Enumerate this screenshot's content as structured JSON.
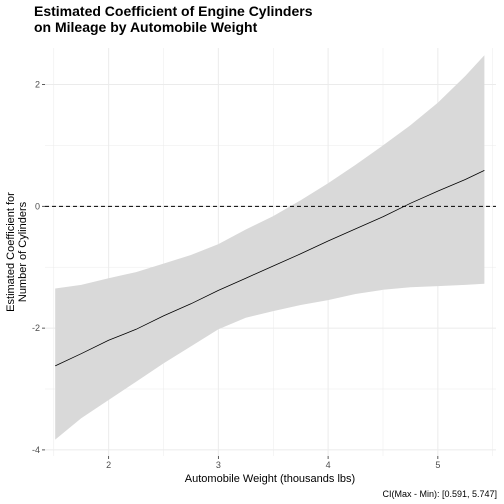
{
  "chart_data": {
    "type": "line",
    "title_lines": [
      "Estimated Coefficient of Engine Cylinders",
      "on Mileage by Automobile Weight"
    ],
    "xlabel": "Automobile Weight (thousands lbs)",
    "ylabel_lines": [
      "Estimated Coefficient for",
      "Number of Cylinders"
    ],
    "caption": "CI(Max - Min): [0.591, 5.747]",
    "xlim": [
      1.42,
      5.53
    ],
    "ylim": [
      -4.1,
      2.6
    ],
    "x_ticks": [
      2,
      3,
      4,
      5
    ],
    "y_ticks": [
      -4,
      -2,
      0,
      2
    ],
    "x_tick_labels": [
      "2",
      "3",
      "4",
      "5"
    ],
    "y_tick_labels": [
      "-4",
      "-2",
      "0",
      "2"
    ],
    "reference_line": {
      "y": 0,
      "style": "dashed"
    },
    "grid": true,
    "colors": {
      "line": "#000000",
      "ribbon": "#d9d9d9",
      "grid": "#ebebeb"
    },
    "series": [
      {
        "x": [
          1.513,
          1.75,
          2.0,
          2.25,
          2.5,
          2.75,
          3.0,
          3.25,
          3.5,
          3.75,
          4.0,
          4.25,
          4.5,
          4.75,
          5.0,
          5.25,
          5.424
        ],
        "y": [
          -2.62,
          -2.42,
          -2.2,
          -2.02,
          -1.8,
          -1.6,
          -1.38,
          -1.18,
          -0.98,
          -0.78,
          -0.57,
          -0.37,
          -0.17,
          0.05,
          0.25,
          0.44,
          0.59
        ],
        "lower": [
          -3.83,
          -3.48,
          -3.18,
          -2.88,
          -2.58,
          -2.3,
          -2.02,
          -1.83,
          -1.72,
          -1.62,
          -1.54,
          -1.44,
          -1.37,
          -1.33,
          -1.31,
          -1.29,
          -1.27
        ],
        "upper": [
          -1.35,
          -1.29,
          -1.18,
          -1.08,
          -0.94,
          -0.8,
          -0.62,
          -0.38,
          -0.16,
          0.1,
          0.38,
          0.68,
          1.0,
          1.33,
          1.7,
          2.14,
          2.48
        ]
      }
    ]
  }
}
